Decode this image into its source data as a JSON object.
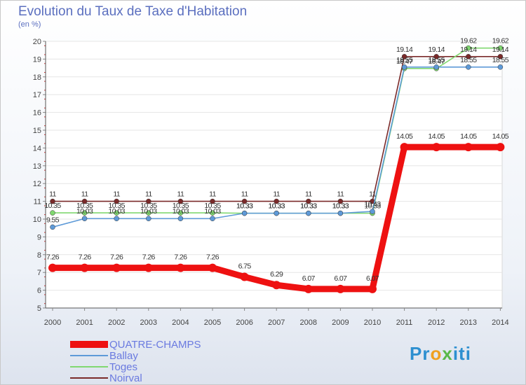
{
  "chart_data": {
    "type": "line",
    "title": "Evolution du Taux de Taxe d'Habitation",
    "subtitle": "(en %)",
    "xlabel": "",
    "ylabel": "(en %)",
    "ylim": [
      5,
      20
    ],
    "y_ticks": [
      "5",
      "6",
      "7",
      "8",
      "9",
      "10",
      "11",
      "12",
      "13",
      "14",
      "15",
      "16",
      "17",
      "18",
      "19",
      "20"
    ],
    "x": [
      "2000",
      "2001",
      "2002",
      "2003",
      "2004",
      "2005",
      "2006",
      "2007",
      "2008",
      "2009",
      "2010",
      "2011",
      "2012",
      "2013",
      "2014"
    ],
    "series": [
      {
        "name": "Noirval",
        "color": "#7a2a2a",
        "values": [
          11,
          11,
          11,
          11,
          11,
          11,
          11,
          11,
          11,
          11,
          11,
          19.14,
          19.14,
          19.14,
          19.14
        ],
        "labels": [
          "11",
          "11",
          "11",
          "11",
          "11",
          "11",
          "11",
          "11",
          "11",
          "11",
          "11",
          "19.14",
          "19.14",
          "19.14",
          "19.14"
        ]
      },
      {
        "name": "Toges",
        "color": "#80d870",
        "values": [
          10.35,
          10.35,
          10.35,
          10.35,
          10.35,
          10.35,
          10.33,
          10.33,
          10.33,
          10.33,
          10.33,
          18.47,
          18.47,
          19.62,
          19.62
        ],
        "labels": [
          "10.35",
          "10.35",
          "10.35",
          "10.35",
          "10.35",
          "10.35",
          "10.33",
          "10.33",
          "10.33",
          "10.33",
          "10.33",
          "18.47",
          "18.47",
          "19.62",
          "19.62"
        ]
      },
      {
        "name": "Ballay",
        "color": "#5e9ad8",
        "values": [
          9.55,
          10.03,
          10.03,
          10.03,
          10.03,
          10.03,
          10.33,
          10.33,
          10.33,
          10.33,
          10.43,
          18.55,
          18.55,
          18.55,
          18.55
        ],
        "labels": [
          "9.55",
          "10.03",
          "10.03",
          "10.03",
          "10.03",
          "10.03",
          "10.33",
          "10.33",
          "10.33",
          "10.33",
          "10.43",
          "18.55",
          "18.55",
          "18.55",
          "18.55"
        ]
      },
      {
        "name": "QUATRE-CHAMPS",
        "color": "#ee1111",
        "values": [
          7.26,
          7.26,
          7.26,
          7.26,
          7.26,
          7.26,
          6.75,
          6.29,
          6.07,
          6.07,
          6.07,
          14.05,
          14.05,
          14.05,
          14.05
        ],
        "labels": [
          "7.26",
          "7.26",
          "7.26",
          "7.26",
          "7.26",
          "7.26",
          "6.75",
          "6.29",
          "6.07",
          "6.07",
          "6.07",
          "14.05",
          "14.05",
          "14.05",
          "14.05"
        ]
      }
    ]
  },
  "legend": [
    {
      "name": "QUATRE-CHAMPS",
      "color": "#ee1111"
    },
    {
      "name": "Ballay",
      "color": "#5e9ad8"
    },
    {
      "name": "Toges",
      "color": "#80d870"
    },
    {
      "name": "Noirval",
      "color": "#7a2a2a"
    }
  ],
  "logo": {
    "part1": "Pr",
    "part2": "o",
    "part3": "x",
    "part4": "iti"
  }
}
